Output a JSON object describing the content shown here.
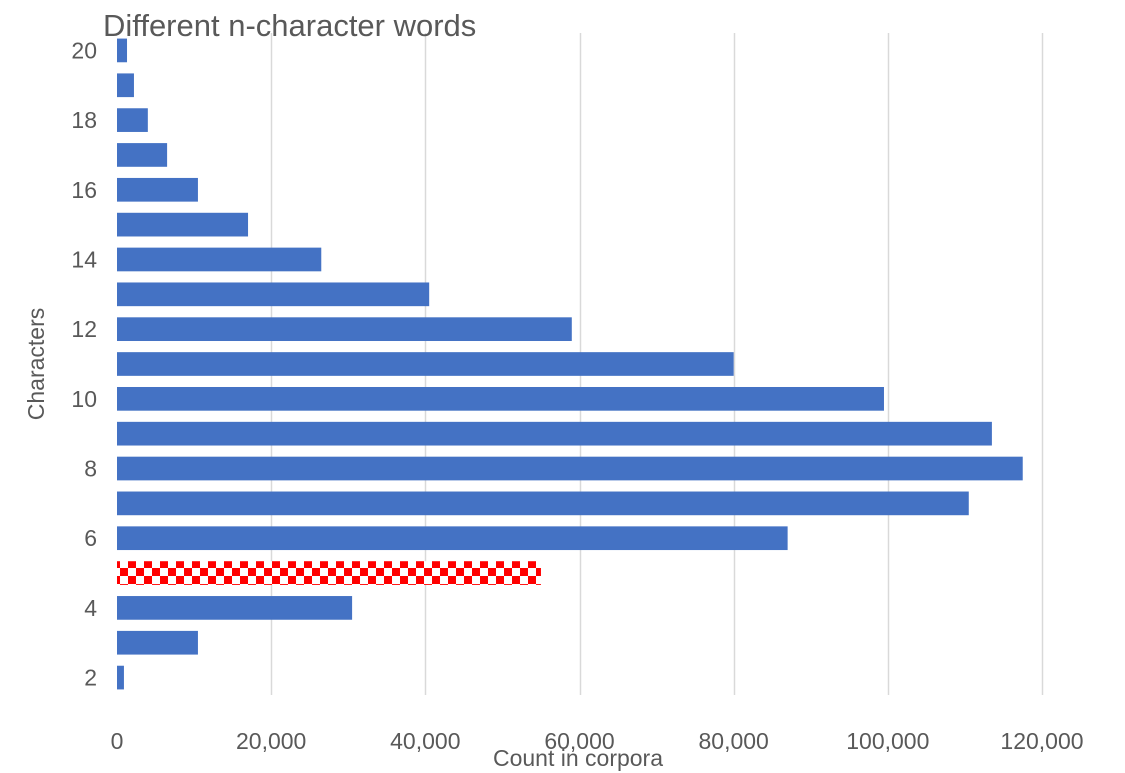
{
  "chart_data": {
    "type": "bar",
    "orientation": "horizontal",
    "title": "Different n-character words",
    "xlabel": "Count in corpora",
    "ylabel": "Characters",
    "categories": [
      2,
      3,
      4,
      5,
      6,
      7,
      8,
      9,
      10,
      11,
      12,
      13,
      14,
      15,
      16,
      17,
      18,
      19,
      20
    ],
    "values": [
      900,
      10500,
      30500,
      55000,
      87000,
      110500,
      117500,
      113500,
      99500,
      80000,
      59000,
      40500,
      26500,
      17000,
      10500,
      6500,
      4000,
      2200,
      1300
    ],
    "highlight_category": 5,
    "y_tick_labels": [
      "2",
      "4",
      "6",
      "8",
      "10",
      "12",
      "14",
      "16",
      "18",
      "20"
    ],
    "x_tick_labels": [
      "0",
      "20,000",
      "40,000",
      "60,000",
      "80,000",
      "100,000",
      "120,000"
    ],
    "x_ticks": [
      0,
      20000,
      40000,
      60000,
      80000,
      100000,
      120000
    ],
    "xlim": [
      0,
      120000
    ],
    "grid": "vertical",
    "colors": {
      "bar": "#4472c4",
      "highlight": "#ff0000",
      "grid": "#d9d9d9",
      "text": "#595959"
    }
  }
}
